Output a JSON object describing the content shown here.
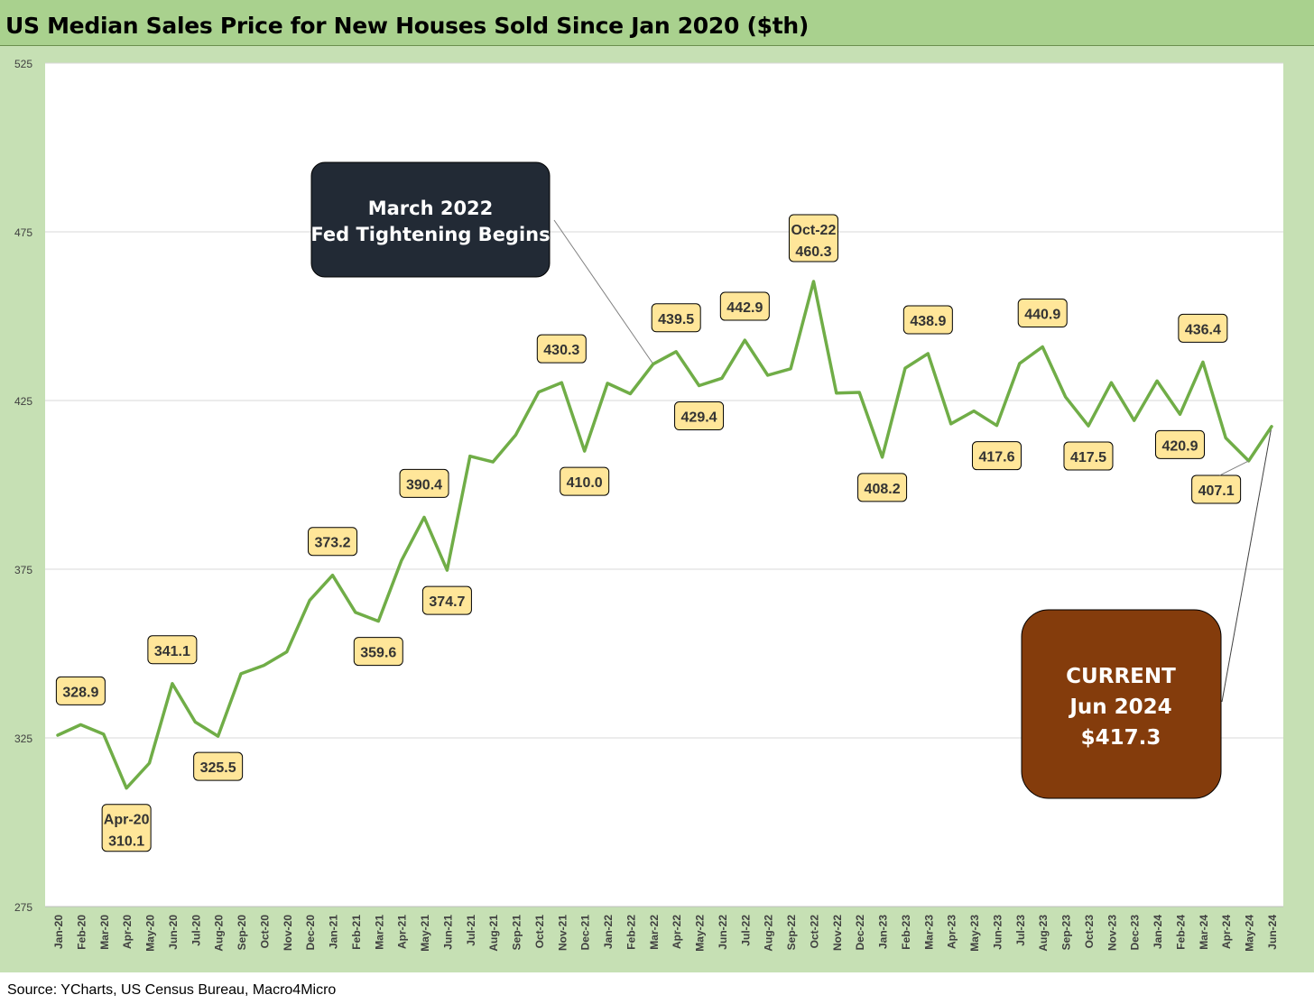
{
  "title": "US Median Sales Price for New Houses Sold Since Jan 2020 ($th)",
  "source": "Source: YCharts, US Census Bureau, Macro4Micro",
  "colors": {
    "line": "#70ad47",
    "label_fill": "#ffe699",
    "fed_box": "#222a35",
    "current_box": "#843c0c",
    "frame": "#c6e0b4",
    "title_bar": "#a9d18e"
  },
  "chart_data": {
    "type": "line",
    "title": "US Median Sales Price for New Houses Sold Since Jan 2020 ($th)",
    "xlabel": "",
    "ylabel": "",
    "ylim": [
      275,
      525
    ],
    "yticks": [
      275,
      325,
      375,
      425,
      475,
      525
    ],
    "grid": true,
    "categories": [
      "Jan-20",
      "Feb-20",
      "Mar-20",
      "Apr-20",
      "May-20",
      "Jun-20",
      "Jul-20",
      "Aug-20",
      "Sep-20",
      "Oct-20",
      "Nov-20",
      "Dec-20",
      "Jan-21",
      "Feb-21",
      "Mar-21",
      "Apr-21",
      "May-21",
      "Jun-21",
      "Jul-21",
      "Aug-21",
      "Sep-21",
      "Oct-21",
      "Nov-21",
      "Dec-21",
      "Jan-22",
      "Feb-22",
      "Mar-22",
      "Apr-22",
      "May-22",
      "Jun-22",
      "Jul-22",
      "Aug-22",
      "Sep-22",
      "Oct-22",
      "Nov-22",
      "Dec-22",
      "Jan-23",
      "Feb-23",
      "Mar-23",
      "Apr-23",
      "May-23",
      "Jun-23",
      "Jul-23",
      "Aug-23",
      "Sep-23",
      "Oct-23",
      "Nov-23",
      "Dec-23",
      "Jan-24",
      "Feb-24",
      "Mar-24",
      "Apr-24",
      "May-24",
      "Jun-24"
    ],
    "series": [
      {
        "values": [
          325.8,
          328.9,
          326.1,
          310.1,
          317.5,
          341.1,
          329.7,
          325.5,
          344.0,
          346.5,
          350.5,
          365.8,
          373.2,
          362.2,
          359.6,
          377.5,
          390.4,
          374.7,
          408.5,
          406.8,
          414.8,
          427.5,
          430.3,
          410.0,
          430.1,
          427.0,
          435.8,
          439.5,
          429.4,
          431.6,
          442.9,
          432.5,
          434.4,
          460.3,
          427.2,
          427.4,
          408.2,
          434.6,
          438.9,
          418.1,
          421.9,
          417.6,
          436.0,
          440.9,
          426.1,
          417.5,
          430.3,
          419.1,
          430.8,
          420.9,
          436.4,
          413.9,
          407.1,
          417.3
        ]
      }
    ],
    "data_labels": [
      {
        "index": 1,
        "lines": [
          "328.9"
        ],
        "placement": "above"
      },
      {
        "index": 3,
        "lines": [
          "Apr-20",
          "310.1"
        ],
        "placement": "below"
      },
      {
        "index": 5,
        "lines": [
          "341.1"
        ],
        "placement": "above"
      },
      {
        "index": 7,
        "lines": [
          "325.5"
        ],
        "placement": "below"
      },
      {
        "index": 12,
        "lines": [
          "373.2"
        ],
        "placement": "above"
      },
      {
        "index": 14,
        "lines": [
          "359.6"
        ],
        "placement": "below"
      },
      {
        "index": 16,
        "lines": [
          "390.4"
        ],
        "placement": "above"
      },
      {
        "index": 17,
        "lines": [
          "374.7"
        ],
        "placement": "below"
      },
      {
        "index": 22,
        "lines": [
          "430.3"
        ],
        "placement": "above"
      },
      {
        "index": 23,
        "lines": [
          "410.0"
        ],
        "placement": "below"
      },
      {
        "index": 27,
        "lines": [
          "439.5"
        ],
        "placement": "above"
      },
      {
        "index": 28,
        "lines": [
          "429.4"
        ],
        "placement": "below"
      },
      {
        "index": 30,
        "lines": [
          "442.9"
        ],
        "placement": "above"
      },
      {
        "index": 33,
        "lines": [
          "Oct-22",
          "460.3"
        ],
        "placement": "above"
      },
      {
        "index": 36,
        "lines": [
          "408.2"
        ],
        "placement": "below"
      },
      {
        "index": 38,
        "lines": [
          "438.9"
        ],
        "placement": "above"
      },
      {
        "index": 41,
        "lines": [
          "417.6"
        ],
        "placement": "below"
      },
      {
        "index": 43,
        "lines": [
          "440.9"
        ],
        "placement": "above"
      },
      {
        "index": 45,
        "lines": [
          "417.5"
        ],
        "placement": "below"
      },
      {
        "index": 49,
        "lines": [
          "420.9"
        ],
        "placement": "below"
      },
      {
        "index": 50,
        "lines": [
          "436.4"
        ],
        "placement": "above"
      },
      {
        "index": 52,
        "lines": [
          "407.1"
        ],
        "placement": "below-left"
      }
    ],
    "annotations": [
      {
        "name": "fed-tightening-callout",
        "lines": [
          "March 2022",
          "Fed Tightening Begins"
        ],
        "points_to_index": 26
      },
      {
        "name": "current-callout",
        "lines": [
          "CURRENT",
          "Jun 2024",
          "$417.3"
        ],
        "points_to_index": 53
      }
    ]
  }
}
